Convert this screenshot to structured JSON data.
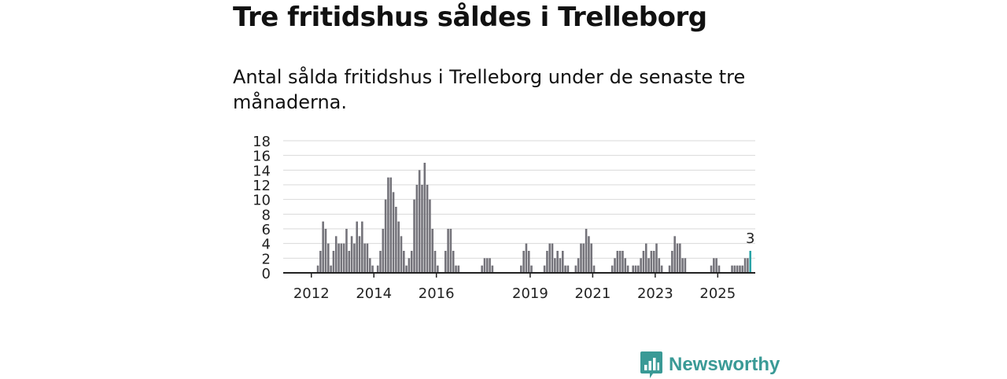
{
  "title": "Tre fritidshus såldes i Trelleborg",
  "subtitle": "Antal sålda fritidshus i Trelleborg under de senaste tre månaderna.",
  "brand": {
    "name": "Newsworthy",
    "color": "#3a9a96",
    "icon": "newsworthy-bar-chart-icon"
  },
  "colors": {
    "bar": "#74737a",
    "highlight": "#2aa4a7",
    "grid": "#d9d9d9",
    "axis": "#222222"
  },
  "chart_data": {
    "type": "bar",
    "title": "",
    "xlabel": "",
    "ylabel": "",
    "ylim": [
      0,
      18
    ],
    "yticks": [
      "0",
      "2",
      "4",
      "6",
      "8",
      "10",
      "12",
      "14",
      "16",
      "18"
    ],
    "xtick_labels": [
      {
        "label": "2012",
        "x": 2012.0
      },
      {
        "label": "2014",
        "x": 2014.0
      },
      {
        "label": "2016",
        "x": 2016.0
      },
      {
        "label": "2019",
        "x": 2019.0
      },
      {
        "label": "2021",
        "x": 2021.0
      },
      {
        "label": "2023",
        "x": 2023.0
      },
      {
        "label": "2025",
        "x": 2025.0
      }
    ],
    "xlim": [
      2011.1,
      2026.2
    ],
    "first_period": "2012-03",
    "period_months": 1,
    "values": [
      1,
      3,
      7,
      6,
      4,
      1,
      3,
      5,
      4,
      4,
      4,
      6,
      3,
      5,
      4,
      7,
      5,
      7,
      4,
      4,
      2,
      1,
      0,
      1,
      3,
      6,
      10,
      13,
      13,
      11,
      9,
      7,
      5,
      3,
      1,
      2,
      3,
      10,
      12,
      14,
      12,
      15,
      12,
      10,
      6,
      3,
      1,
      0,
      0,
      3,
      6,
      6,
      3,
      1,
      1,
      0,
      0,
      0,
      0,
      0,
      0,
      0,
      0,
      1,
      2,
      2,
      2,
      1,
      0,
      0,
      0,
      0,
      0,
      0,
      0,
      0,
      0,
      0,
      1,
      3,
      4,
      3,
      1,
      0,
      0,
      0,
      0,
      1,
      3,
      4,
      4,
      2,
      3,
      2,
      3,
      1,
      1,
      0,
      0,
      1,
      2,
      4,
      4,
      6,
      5,
      4,
      1,
      0,
      0,
      0,
      0,
      0,
      0,
      1,
      2,
      3,
      3,
      3,
      2,
      1,
      0,
      1,
      1,
      1,
      2,
      3,
      4,
      2,
      3,
      3,
      4,
      2,
      1,
      0,
      0,
      1,
      3,
      5,
      4,
      4,
      2,
      2,
      0,
      0,
      0,
      0,
      0,
      0,
      0,
      0,
      0,
      1,
      2,
      2,
      1,
      0,
      0,
      0,
      0,
      1,
      1,
      1,
      1,
      1,
      2,
      2,
      3
    ],
    "highlight": {
      "label": "3",
      "value": 3
    },
    "grid": true,
    "legend": "none"
  }
}
